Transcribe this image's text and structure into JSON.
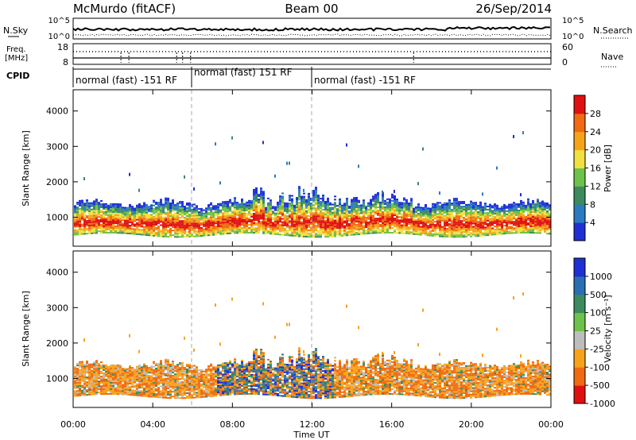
{
  "header": {
    "station": "McMurdo (fitACF)",
    "beam": "Beam 00",
    "date": "26/Sep/2014"
  },
  "colors": {
    "power_scale": [
      "#1f2fd6",
      "#2a7bbf",
      "#3c8a5e",
      "#6cc24a",
      "#f0e040",
      "#f7a21b",
      "#f06a10",
      "#e01010"
    ],
    "velocity_scale": [
      "#e01010",
      "#f06a10",
      "#f7a21b",
      "#bdbdbd",
      "#6cc24a",
      "#3c8a5e",
      "#2a6fb0",
      "#1f2fd6"
    ]
  },
  "top_panels": {
    "nsky": {
      "label": "N.Sky",
      "right_label": "N.Search",
      "y_ticks_left": [
        "10^5",
        "10^0"
      ],
      "y_ticks_right": [
        "10^5",
        "10^0"
      ]
    },
    "freq": {
      "label_line1": "Freq.",
      "label_line2": "[MHz]",
      "y_ticks_left": [
        "18",
        "8"
      ],
      "right_label": "Nave",
      "y_ticks_right": [
        "60",
        "0"
      ]
    },
    "cpid": {
      "label": "CPID",
      "segments": [
        {
          "label": "normal (fast) -151 RF"
        },
        {
          "label": "normal (fast) 151 RF"
        },
        {
          "label": "normal (fast) -151 RF"
        }
      ]
    }
  },
  "chart_data": [
    {
      "type": "heatmap",
      "title": "",
      "xlabel": "Time UT",
      "ylabel": "Slant Range [km]",
      "x_ticks": [
        "00:00",
        "04:00",
        "08:00",
        "12:00",
        "16:00",
        "20:00",
        "00:00"
      ],
      "xlim_hours": [
        0,
        24
      ],
      "y_ticks": [
        "1000",
        "2000",
        "3000",
        "4000"
      ],
      "ylim": [
        180,
        4600
      ],
      "colorbar": {
        "label": "Power [dB]",
        "ticks": [
          "4",
          "8",
          "12",
          "16",
          "20",
          "24",
          "28"
        ],
        "range": [
          0,
          32
        ]
      },
      "cpid_change_hours": [
        6,
        12
      ],
      "description_rows": [
        {
          "t_start": 0,
          "t_end": 24,
          "core_range_km": [
            600,
            1300
          ],
          "peak_power_db": 28
        }
      ]
    },
    {
      "type": "heatmap",
      "title": "",
      "xlabel": "Time UT",
      "ylabel": "Slant Range [km]",
      "x_ticks": [
        "00:00",
        "04:00",
        "08:00",
        "12:00",
        "16:00",
        "20:00",
        "00:00"
      ],
      "xlim_hours": [
        0,
        24
      ],
      "y_ticks": [
        "1000",
        "2000",
        "3000",
        "4000"
      ],
      "ylim": [
        180,
        4600
      ],
      "colorbar": {
        "label": "Velocity [m s⁻¹]",
        "ticks": [
          "1000",
          "500",
          "100",
          "25",
          "-25",
          "-100",
          "-500",
          "-1000"
        ]
      },
      "cpid_change_hours": [
        6,
        12
      ]
    }
  ],
  "axes": {
    "time_label": "Time UT"
  }
}
